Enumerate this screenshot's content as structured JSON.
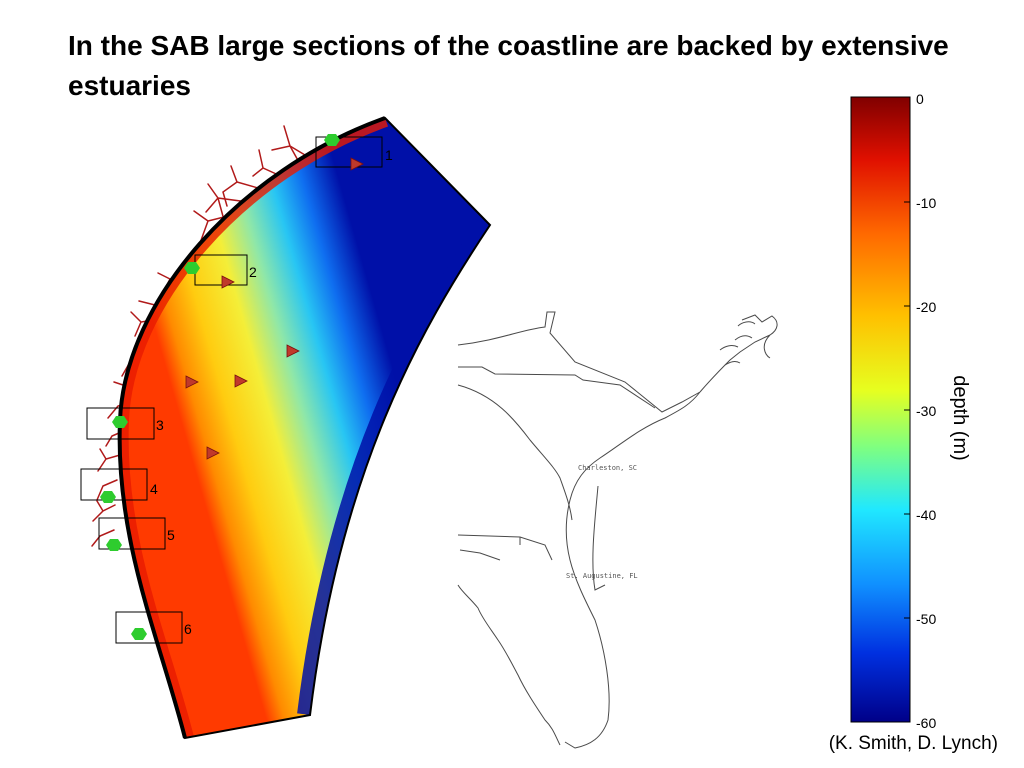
{
  "title": "In the SAB large sections of the coastline are backed by extensive estuaries",
  "stations": [
    {
      "label": "1"
    },
    {
      "label": "2"
    },
    {
      "label": "3"
    },
    {
      "label": "4"
    },
    {
      "label": "5"
    },
    {
      "label": "6"
    }
  ],
  "inset_map": {
    "cities": [
      "Charleston, SC",
      "St. Augustine, FL"
    ]
  },
  "colorbar": {
    "label": "depth (m)",
    "ticks": [
      "0",
      "-10",
      "-20",
      "-30",
      "-40",
      "-50",
      "-60"
    ],
    "range": [
      -60,
      0
    ],
    "colormap": "jet"
  },
  "credit": "(K. Smith, D. Lynch)",
  "colors": {
    "coast_land": "#b11a1a",
    "station_marker": "#2ecc2e",
    "current_meter": "#c0392b"
  }
}
